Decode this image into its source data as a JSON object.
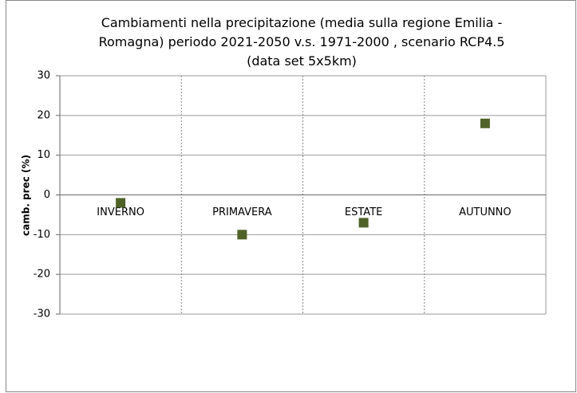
{
  "chart_data": {
    "type": "scatter",
    "title": "Cambiamenti nella precipitazione (media sulla regione Emilia - Romagna) periodo 2021-2050 v.s. 1971-2000 , scenario RCP4.5 (data set 5x5km)",
    "y_label": "camb. prec (%)",
    "categories": [
      "INVERNO",
      "PRIMAVERA",
      "ESTATE",
      "AUTUNNO"
    ],
    "values": [
      -2,
      -10,
      -7,
      18
    ],
    "color": "#4f6228",
    "ylim": [
      -30,
      30
    ],
    "yticks": [
      -30,
      -20,
      -10,
      0,
      10,
      20,
      30
    ],
    "grid": true
  }
}
